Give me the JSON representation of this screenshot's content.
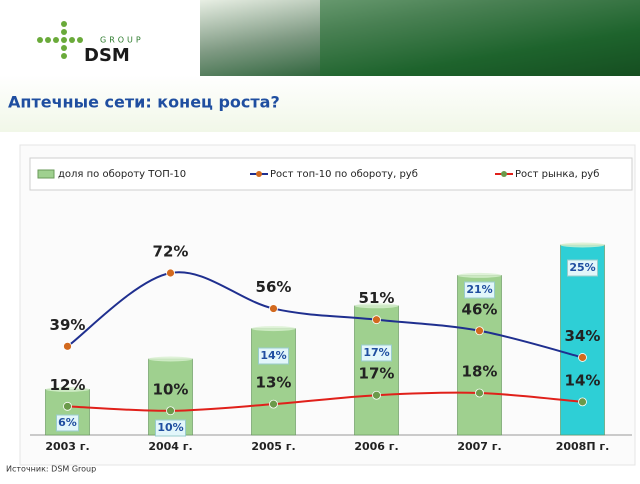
{
  "header": {
    "logo_group": "GROUP",
    "logo_name": "DSM",
    "title": "Аптечные сети: конец роста?"
  },
  "chart_data": {
    "type": "bar-line",
    "categories": [
      "2003 г.",
      "2004 г.",
      "2005 г.",
      "2006 г.",
      "2007 г.",
      "2008П г."
    ],
    "series": [
      {
        "name": "доля по обороту ТОП-10",
        "type": "bar",
        "color": "#9fd08f",
        "colors": [
          "#9fd08f",
          "#9fd08f",
          "#9fd08f",
          "#9fd08f",
          "#9fd08f",
          "#2ecfd6"
        ],
        "values": [
          6,
          10,
          14,
          17,
          21,
          25
        ],
        "value_labels": [
          "6%",
          "10%",
          "14%",
          "17%",
          "21%",
          "25%"
        ]
      },
      {
        "name": "Рост топ-10 по обороту, руб",
        "type": "line",
        "color": "#1f2f8f",
        "marker_color": "#d2691e",
        "values": [
          39,
          72,
          56,
          51,
          46,
          34
        ],
        "value_labels": [
          "39%",
          "72%",
          "56%",
          "51%",
          "46%",
          "34%"
        ]
      },
      {
        "name": "Рост рынка, руб",
        "type": "line",
        "color": "#e0201a",
        "marker_color": "#6b9a4a",
        "values": [
          12,
          10,
          13,
          17,
          18,
          14
        ],
        "value_labels": [
          "12%",
          "10%",
          "13%",
          "17%",
          "18%",
          "14%"
        ]
      }
    ]
  },
  "footer": {
    "source": "Источник: DSM Group"
  }
}
